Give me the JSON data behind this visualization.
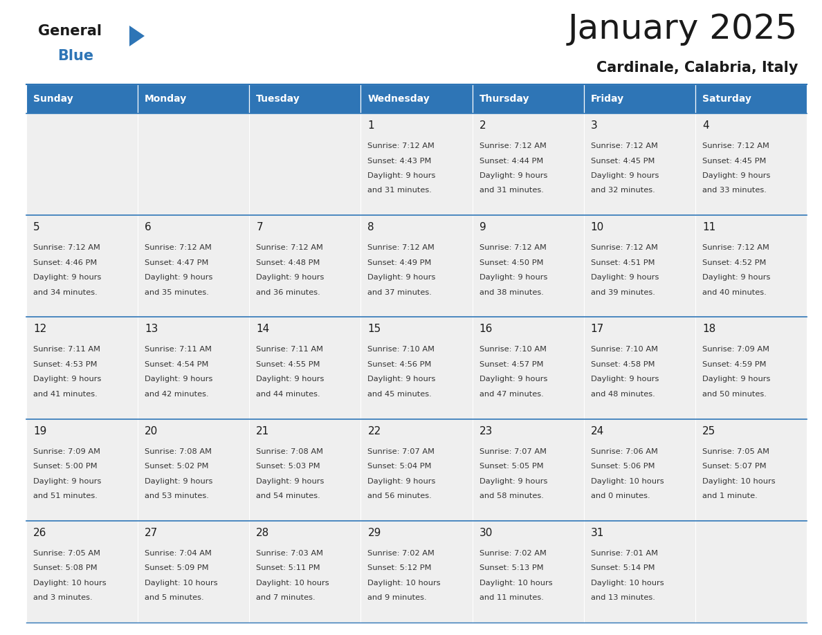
{
  "title": "January 2025",
  "subtitle": "Cardinale, Calabria, Italy",
  "days_of_week": [
    "Sunday",
    "Monday",
    "Tuesday",
    "Wednesday",
    "Thursday",
    "Friday",
    "Saturday"
  ],
  "header_bg": "#2E75B6",
  "header_text": "#FFFFFF",
  "cell_bg_light": "#EFEFEF",
  "text_color": "#333333",
  "line_color": "#2E75B6",
  "calendar_data": {
    "1": {
      "sunrise": "7:12 AM",
      "sunset": "4:43 PM",
      "daylight": "9 hours",
      "daylight2": "and 31 minutes."
    },
    "2": {
      "sunrise": "7:12 AM",
      "sunset": "4:44 PM",
      "daylight": "9 hours",
      "daylight2": "and 31 minutes."
    },
    "3": {
      "sunrise": "7:12 AM",
      "sunset": "4:45 PM",
      "daylight": "9 hours",
      "daylight2": "and 32 minutes."
    },
    "4": {
      "sunrise": "7:12 AM",
      "sunset": "4:45 PM",
      "daylight": "9 hours",
      "daylight2": "and 33 minutes."
    },
    "5": {
      "sunrise": "7:12 AM",
      "sunset": "4:46 PM",
      "daylight": "9 hours",
      "daylight2": "and 34 minutes."
    },
    "6": {
      "sunrise": "7:12 AM",
      "sunset": "4:47 PM",
      "daylight": "9 hours",
      "daylight2": "and 35 minutes."
    },
    "7": {
      "sunrise": "7:12 AM",
      "sunset": "4:48 PM",
      "daylight": "9 hours",
      "daylight2": "and 36 minutes."
    },
    "8": {
      "sunrise": "7:12 AM",
      "sunset": "4:49 PM",
      "daylight": "9 hours",
      "daylight2": "and 37 minutes."
    },
    "9": {
      "sunrise": "7:12 AM",
      "sunset": "4:50 PM",
      "daylight": "9 hours",
      "daylight2": "and 38 minutes."
    },
    "10": {
      "sunrise": "7:12 AM",
      "sunset": "4:51 PM",
      "daylight": "9 hours",
      "daylight2": "and 39 minutes."
    },
    "11": {
      "sunrise": "7:12 AM",
      "sunset": "4:52 PM",
      "daylight": "9 hours",
      "daylight2": "and 40 minutes."
    },
    "12": {
      "sunrise": "7:11 AM",
      "sunset": "4:53 PM",
      "daylight": "9 hours",
      "daylight2": "and 41 minutes."
    },
    "13": {
      "sunrise": "7:11 AM",
      "sunset": "4:54 PM",
      "daylight": "9 hours",
      "daylight2": "and 42 minutes."
    },
    "14": {
      "sunrise": "7:11 AM",
      "sunset": "4:55 PM",
      "daylight": "9 hours",
      "daylight2": "and 44 minutes."
    },
    "15": {
      "sunrise": "7:10 AM",
      "sunset": "4:56 PM",
      "daylight": "9 hours",
      "daylight2": "and 45 minutes."
    },
    "16": {
      "sunrise": "7:10 AM",
      "sunset": "4:57 PM",
      "daylight": "9 hours",
      "daylight2": "and 47 minutes."
    },
    "17": {
      "sunrise": "7:10 AM",
      "sunset": "4:58 PM",
      "daylight": "9 hours",
      "daylight2": "and 48 minutes."
    },
    "18": {
      "sunrise": "7:09 AM",
      "sunset": "4:59 PM",
      "daylight": "9 hours",
      "daylight2": "and 50 minutes."
    },
    "19": {
      "sunrise": "7:09 AM",
      "sunset": "5:00 PM",
      "daylight": "9 hours",
      "daylight2": "and 51 minutes."
    },
    "20": {
      "sunrise": "7:08 AM",
      "sunset": "5:02 PM",
      "daylight": "9 hours",
      "daylight2": "and 53 minutes."
    },
    "21": {
      "sunrise": "7:08 AM",
      "sunset": "5:03 PM",
      "daylight": "9 hours",
      "daylight2": "and 54 minutes."
    },
    "22": {
      "sunrise": "7:07 AM",
      "sunset": "5:04 PM",
      "daylight": "9 hours",
      "daylight2": "and 56 minutes."
    },
    "23": {
      "sunrise": "7:07 AM",
      "sunset": "5:05 PM",
      "daylight": "9 hours",
      "daylight2": "and 58 minutes."
    },
    "24": {
      "sunrise": "7:06 AM",
      "sunset": "5:06 PM",
      "daylight": "10 hours",
      "daylight2": "and 0 minutes."
    },
    "25": {
      "sunrise": "7:05 AM",
      "sunset": "5:07 PM",
      "daylight": "10 hours",
      "daylight2": "and 1 minute."
    },
    "26": {
      "sunrise": "7:05 AM",
      "sunset": "5:08 PM",
      "daylight": "10 hours",
      "daylight2": "and 3 minutes."
    },
    "27": {
      "sunrise": "7:04 AM",
      "sunset": "5:09 PM",
      "daylight": "10 hours",
      "daylight2": "and 5 minutes."
    },
    "28": {
      "sunrise": "7:03 AM",
      "sunset": "5:11 PM",
      "daylight": "10 hours",
      "daylight2": "and 7 minutes."
    },
    "29": {
      "sunrise": "7:02 AM",
      "sunset": "5:12 PM",
      "daylight": "10 hours",
      "daylight2": "and 9 minutes."
    },
    "30": {
      "sunrise": "7:02 AM",
      "sunset": "5:13 PM",
      "daylight": "10 hours",
      "daylight2": "and 11 minutes."
    },
    "31": {
      "sunrise": "7:01 AM",
      "sunset": "5:14 PM",
      "daylight": "10 hours",
      "daylight2": "and 13 minutes."
    }
  },
  "weeks": [
    [
      null,
      null,
      null,
      1,
      2,
      3,
      4
    ],
    [
      5,
      6,
      7,
      8,
      9,
      10,
      11
    ],
    [
      12,
      13,
      14,
      15,
      16,
      17,
      18
    ],
    [
      19,
      20,
      21,
      22,
      23,
      24,
      25
    ],
    [
      26,
      27,
      28,
      29,
      30,
      31,
      null
    ]
  ],
  "fig_width": 11.88,
  "fig_height": 9.18,
  "dpi": 100
}
